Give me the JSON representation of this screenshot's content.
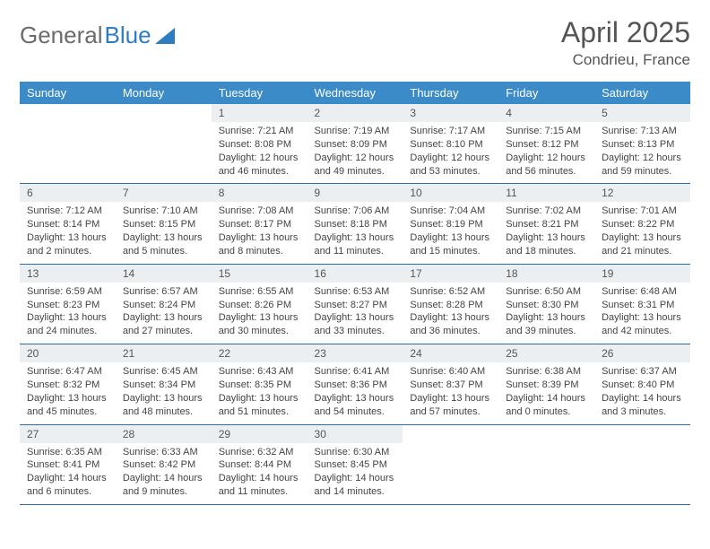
{
  "brand": {
    "part1": "General",
    "part2": "Blue"
  },
  "title": "April 2025",
  "location": "Condrieu, France",
  "colors": {
    "header_bg": "#3b8bc9",
    "daynum_bg": "#eceff1",
    "row_border": "#2d6fa3",
    "brand_gray": "#6b6b6b",
    "brand_blue": "#2d7dc0"
  },
  "weekdays": [
    "Sunday",
    "Monday",
    "Tuesday",
    "Wednesday",
    "Thursday",
    "Friday",
    "Saturday"
  ],
  "weeks": [
    [
      {
        "empty": true
      },
      {
        "empty": true
      },
      {
        "n": "1",
        "sr": "7:21 AM",
        "ss": "8:08 PM",
        "dl": "12 hours and 46 minutes."
      },
      {
        "n": "2",
        "sr": "7:19 AM",
        "ss": "8:09 PM",
        "dl": "12 hours and 49 minutes."
      },
      {
        "n": "3",
        "sr": "7:17 AM",
        "ss": "8:10 PM",
        "dl": "12 hours and 53 minutes."
      },
      {
        "n": "4",
        "sr": "7:15 AM",
        "ss": "8:12 PM",
        "dl": "12 hours and 56 minutes."
      },
      {
        "n": "5",
        "sr": "7:13 AM",
        "ss": "8:13 PM",
        "dl": "12 hours and 59 minutes."
      }
    ],
    [
      {
        "n": "6",
        "sr": "7:12 AM",
        "ss": "8:14 PM",
        "dl": "13 hours and 2 minutes."
      },
      {
        "n": "7",
        "sr": "7:10 AM",
        "ss": "8:15 PM",
        "dl": "13 hours and 5 minutes."
      },
      {
        "n": "8",
        "sr": "7:08 AM",
        "ss": "8:17 PM",
        "dl": "13 hours and 8 minutes."
      },
      {
        "n": "9",
        "sr": "7:06 AM",
        "ss": "8:18 PM",
        "dl": "13 hours and 11 minutes."
      },
      {
        "n": "10",
        "sr": "7:04 AM",
        "ss": "8:19 PM",
        "dl": "13 hours and 15 minutes."
      },
      {
        "n": "11",
        "sr": "7:02 AM",
        "ss": "8:21 PM",
        "dl": "13 hours and 18 minutes."
      },
      {
        "n": "12",
        "sr": "7:01 AM",
        "ss": "8:22 PM",
        "dl": "13 hours and 21 minutes."
      }
    ],
    [
      {
        "n": "13",
        "sr": "6:59 AM",
        "ss": "8:23 PM",
        "dl": "13 hours and 24 minutes."
      },
      {
        "n": "14",
        "sr": "6:57 AM",
        "ss": "8:24 PM",
        "dl": "13 hours and 27 minutes."
      },
      {
        "n": "15",
        "sr": "6:55 AM",
        "ss": "8:26 PM",
        "dl": "13 hours and 30 minutes."
      },
      {
        "n": "16",
        "sr": "6:53 AM",
        "ss": "8:27 PM",
        "dl": "13 hours and 33 minutes."
      },
      {
        "n": "17",
        "sr": "6:52 AM",
        "ss": "8:28 PM",
        "dl": "13 hours and 36 minutes."
      },
      {
        "n": "18",
        "sr": "6:50 AM",
        "ss": "8:30 PM",
        "dl": "13 hours and 39 minutes."
      },
      {
        "n": "19",
        "sr": "6:48 AM",
        "ss": "8:31 PM",
        "dl": "13 hours and 42 minutes."
      }
    ],
    [
      {
        "n": "20",
        "sr": "6:47 AM",
        "ss": "8:32 PM",
        "dl": "13 hours and 45 minutes."
      },
      {
        "n": "21",
        "sr": "6:45 AM",
        "ss": "8:34 PM",
        "dl": "13 hours and 48 minutes."
      },
      {
        "n": "22",
        "sr": "6:43 AM",
        "ss": "8:35 PM",
        "dl": "13 hours and 51 minutes."
      },
      {
        "n": "23",
        "sr": "6:41 AM",
        "ss": "8:36 PM",
        "dl": "13 hours and 54 minutes."
      },
      {
        "n": "24",
        "sr": "6:40 AM",
        "ss": "8:37 PM",
        "dl": "13 hours and 57 minutes."
      },
      {
        "n": "25",
        "sr": "6:38 AM",
        "ss": "8:39 PM",
        "dl": "14 hours and 0 minutes."
      },
      {
        "n": "26",
        "sr": "6:37 AM",
        "ss": "8:40 PM",
        "dl": "14 hours and 3 minutes."
      }
    ],
    [
      {
        "n": "27",
        "sr": "6:35 AM",
        "ss": "8:41 PM",
        "dl": "14 hours and 6 minutes."
      },
      {
        "n": "28",
        "sr": "6:33 AM",
        "ss": "8:42 PM",
        "dl": "14 hours and 9 minutes."
      },
      {
        "n": "29",
        "sr": "6:32 AM",
        "ss": "8:44 PM",
        "dl": "14 hours and 11 minutes."
      },
      {
        "n": "30",
        "sr": "6:30 AM",
        "ss": "8:45 PM",
        "dl": "14 hours and 14 minutes."
      },
      {
        "empty": true
      },
      {
        "empty": true
      },
      {
        "empty": true
      }
    ]
  ],
  "labels": {
    "sunrise": "Sunrise: ",
    "sunset": "Sunset: ",
    "daylight": "Daylight: "
  }
}
